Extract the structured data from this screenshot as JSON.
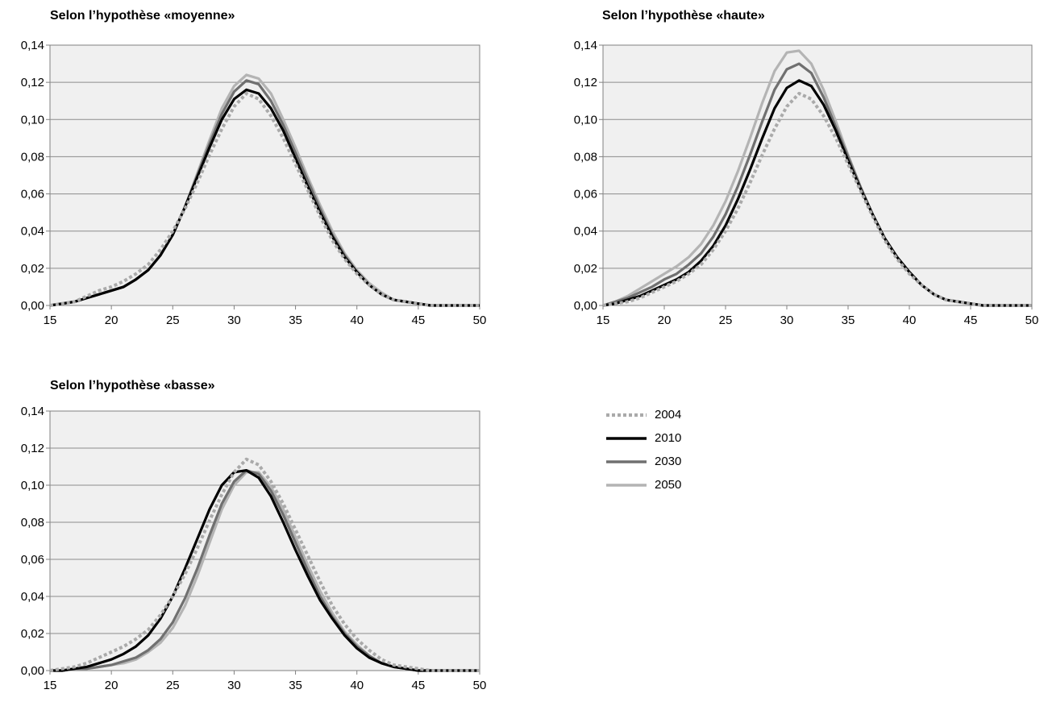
{
  "legend": {
    "items": [
      {
        "name": "2004",
        "color": "#aaaaaa",
        "dash": true
      },
      {
        "name": "2010",
        "color": "#000000",
        "dash": false
      },
      {
        "name": "2030",
        "color": "#707070",
        "dash": false
      },
      {
        "name": "2050",
        "color": "#b4b4b4",
        "dash": false
      }
    ]
  },
  "colors": {
    "plot_background": "#f0f0f0",
    "gridline": "#8c8c8c",
    "axis": "#808080"
  },
  "chart_data": [
    {
      "type": "line",
      "title": "Selon l’hypothèse «moyenne»",
      "xlabel": "",
      "ylabel": "",
      "xlim": [
        15,
        50
      ],
      "ylim": [
        0,
        0.14
      ],
      "xticks": [
        15,
        20,
        25,
        30,
        35,
        40,
        45,
        50
      ],
      "xtick_labels": [
        "15",
        "20",
        "25",
        "30",
        "35",
        "40",
        "45",
        "50"
      ],
      "yticks": [
        0,
        0.02,
        0.04,
        0.06,
        0.08,
        0.1,
        0.12,
        0.14
      ],
      "ytick_labels": [
        "0,00",
        "0,02",
        "0,04",
        "0,06",
        "0,08",
        "0,10",
        "0,12",
        "0,14"
      ],
      "grid": true,
      "x": [
        15,
        16,
        17,
        18,
        19,
        20,
        21,
        22,
        23,
        24,
        25,
        26,
        27,
        28,
        29,
        30,
        31,
        32,
        33,
        34,
        35,
        36,
        37,
        38,
        39,
        40,
        41,
        42,
        43,
        44,
        45,
        46,
        47,
        48,
        49,
        50
      ],
      "series": [
        {
          "name": "2004",
          "values": [
            0.0,
            0.001,
            0.002,
            0.005,
            0.008,
            0.01,
            0.013,
            0.017,
            0.022,
            0.03,
            0.04,
            0.052,
            0.066,
            0.081,
            0.095,
            0.107,
            0.114,
            0.111,
            0.102,
            0.09,
            0.076,
            0.062,
            0.048,
            0.035,
            0.025,
            0.017,
            0.011,
            0.006,
            0.003,
            0.002,
            0.001,
            0.0,
            0.0,
            0.0,
            0.0,
            0.0
          ]
        },
        {
          "name": "2010",
          "values": [
            0.0,
            0.001,
            0.002,
            0.004,
            0.006,
            0.008,
            0.01,
            0.014,
            0.019,
            0.027,
            0.038,
            0.053,
            0.069,
            0.085,
            0.1,
            0.111,
            0.116,
            0.114,
            0.106,
            0.094,
            0.079,
            0.064,
            0.05,
            0.037,
            0.026,
            0.018,
            0.011,
            0.006,
            0.003,
            0.002,
            0.001,
            0.0,
            0.0,
            0.0,
            0.0,
            0.0
          ]
        },
        {
          "name": "2030",
          "values": [
            0.0,
            0.001,
            0.002,
            0.004,
            0.006,
            0.008,
            0.01,
            0.014,
            0.019,
            0.027,
            0.038,
            0.053,
            0.07,
            0.087,
            0.103,
            0.115,
            0.121,
            0.119,
            0.11,
            0.097,
            0.082,
            0.067,
            0.052,
            0.038,
            0.027,
            0.018,
            0.011,
            0.006,
            0.003,
            0.002,
            0.001,
            0.0,
            0.0,
            0.0,
            0.0,
            0.0
          ]
        },
        {
          "name": "2050",
          "values": [
            0.0,
            0.001,
            0.002,
            0.004,
            0.006,
            0.008,
            0.01,
            0.014,
            0.019,
            0.027,
            0.038,
            0.053,
            0.071,
            0.089,
            0.106,
            0.118,
            0.124,
            0.122,
            0.114,
            0.1,
            0.085,
            0.069,
            0.054,
            0.04,
            0.028,
            0.019,
            0.012,
            0.007,
            0.003,
            0.002,
            0.001,
            0.0,
            0.0,
            0.0,
            0.0,
            0.0
          ]
        }
      ]
    },
    {
      "type": "line",
      "title": "Selon l’hypothèse «haute»",
      "xlabel": "",
      "ylabel": "",
      "xlim": [
        15,
        50
      ],
      "ylim": [
        0,
        0.14
      ],
      "xticks": [
        15,
        20,
        25,
        30,
        35,
        40,
        45,
        50
      ],
      "xtick_labels": [
        "15",
        "20",
        "25",
        "30",
        "35",
        "40",
        "45",
        "50"
      ],
      "yticks": [
        0,
        0.02,
        0.04,
        0.06,
        0.08,
        0.1,
        0.12,
        0.14
      ],
      "ytick_labels": [
        "0,00",
        "0,02",
        "0,04",
        "0,06",
        "0,08",
        "0,10",
        "0,12",
        "0,14"
      ],
      "grid": true,
      "x": [
        15,
        16,
        17,
        18,
        19,
        20,
        21,
        22,
        23,
        24,
        25,
        26,
        27,
        28,
        29,
        30,
        31,
        32,
        33,
        34,
        35,
        36,
        37,
        38,
        39,
        40,
        41,
        42,
        43,
        44,
        45,
        46,
        47,
        48,
        49,
        50
      ],
      "series": [
        {
          "name": "2004",
          "values": [
            0.0,
            0.001,
            0.002,
            0.004,
            0.007,
            0.01,
            0.013,
            0.017,
            0.022,
            0.03,
            0.04,
            0.052,
            0.066,
            0.081,
            0.095,
            0.107,
            0.114,
            0.111,
            0.102,
            0.09,
            0.076,
            0.062,
            0.048,
            0.035,
            0.025,
            0.017,
            0.011,
            0.006,
            0.003,
            0.002,
            0.001,
            0.0,
            0.0,
            0.0,
            0.0,
            0.0
          ]
        },
        {
          "name": "2010",
          "values": [
            0.0,
            0.001,
            0.003,
            0.005,
            0.008,
            0.011,
            0.014,
            0.018,
            0.024,
            0.032,
            0.043,
            0.057,
            0.073,
            0.09,
            0.106,
            0.117,
            0.121,
            0.118,
            0.108,
            0.094,
            0.078,
            0.063,
            0.049,
            0.036,
            0.026,
            0.018,
            0.011,
            0.006,
            0.003,
            0.002,
            0.001,
            0.0,
            0.0,
            0.0,
            0.0,
            0.0
          ]
        },
        {
          "name": "2030",
          "values": [
            0.0,
            0.002,
            0.004,
            0.007,
            0.01,
            0.014,
            0.017,
            0.022,
            0.028,
            0.037,
            0.049,
            0.064,
            0.081,
            0.099,
            0.116,
            0.127,
            0.13,
            0.125,
            0.112,
            0.096,
            0.08,
            0.064,
            0.049,
            0.036,
            0.026,
            0.018,
            0.011,
            0.006,
            0.003,
            0.002,
            0.001,
            0.0,
            0.0,
            0.0,
            0.0,
            0.0
          ]
        },
        {
          "name": "2050",
          "values": [
            0.0,
            0.002,
            0.005,
            0.009,
            0.013,
            0.017,
            0.021,
            0.026,
            0.033,
            0.043,
            0.056,
            0.072,
            0.09,
            0.109,
            0.126,
            0.136,
            0.137,
            0.13,
            0.116,
            0.099,
            0.081,
            0.064,
            0.049,
            0.036,
            0.026,
            0.018,
            0.011,
            0.006,
            0.003,
            0.002,
            0.001,
            0.0,
            0.0,
            0.0,
            0.0,
            0.0
          ]
        }
      ]
    },
    {
      "type": "line",
      "title": "Selon l’hypothèse «basse»",
      "xlabel": "",
      "ylabel": "",
      "xlim": [
        15,
        50
      ],
      "ylim": [
        0,
        0.14
      ],
      "xticks": [
        15,
        20,
        25,
        30,
        35,
        40,
        45,
        50
      ],
      "xtick_labels": [
        "15",
        "20",
        "25",
        "30",
        "35",
        "40",
        "45",
        "50"
      ],
      "yticks": [
        0,
        0.02,
        0.04,
        0.06,
        0.08,
        0.1,
        0.12,
        0.14
      ],
      "ytick_labels": [
        "0,00",
        "0,02",
        "0,04",
        "0,06",
        "0,08",
        "0,10",
        "0,12",
        "0,14"
      ],
      "grid": true,
      "x": [
        15,
        16,
        17,
        18,
        19,
        20,
        21,
        22,
        23,
        24,
        25,
        26,
        27,
        28,
        29,
        30,
        31,
        32,
        33,
        34,
        35,
        36,
        37,
        38,
        39,
        40,
        41,
        42,
        43,
        44,
        45,
        46,
        47,
        48,
        49,
        50
      ],
      "series": [
        {
          "name": "2004",
          "values": [
            0.0,
            0.001,
            0.002,
            0.004,
            0.007,
            0.01,
            0.013,
            0.017,
            0.022,
            0.03,
            0.04,
            0.052,
            0.066,
            0.081,
            0.095,
            0.107,
            0.114,
            0.111,
            0.102,
            0.09,
            0.076,
            0.062,
            0.048,
            0.035,
            0.025,
            0.017,
            0.011,
            0.006,
            0.003,
            0.002,
            0.001,
            0.0,
            0.0,
            0.0,
            0.0,
            0.0
          ]
        },
        {
          "name": "2010",
          "values": [
            0.0,
            0.0,
            0.001,
            0.002,
            0.004,
            0.006,
            0.009,
            0.013,
            0.019,
            0.028,
            0.04,
            0.055,
            0.071,
            0.087,
            0.1,
            0.107,
            0.108,
            0.104,
            0.094,
            0.08,
            0.065,
            0.051,
            0.038,
            0.028,
            0.019,
            0.012,
            0.007,
            0.004,
            0.002,
            0.001,
            0.0,
            0.0,
            0.0,
            0.0,
            0.0,
            0.0
          ]
        },
        {
          "name": "2030",
          "values": [
            0.0,
            0.0,
            0.001,
            0.001,
            0.002,
            0.003,
            0.005,
            0.007,
            0.011,
            0.017,
            0.026,
            0.039,
            0.055,
            0.073,
            0.09,
            0.102,
            0.108,
            0.106,
            0.097,
            0.084,
            0.069,
            0.054,
            0.04,
            0.029,
            0.02,
            0.013,
            0.008,
            0.004,
            0.002,
            0.001,
            0.0,
            0.0,
            0.0,
            0.0,
            0.0,
            0.0
          ]
        },
        {
          "name": "2050",
          "values": [
            0.0,
            0.0,
            0.001,
            0.001,
            0.002,
            0.003,
            0.004,
            0.006,
            0.01,
            0.015,
            0.023,
            0.035,
            0.051,
            0.069,
            0.087,
            0.1,
            0.107,
            0.107,
            0.099,
            0.087,
            0.072,
            0.057,
            0.043,
            0.031,
            0.021,
            0.014,
            0.008,
            0.004,
            0.002,
            0.001,
            0.0,
            0.0,
            0.0,
            0.0,
            0.0,
            0.0
          ]
        }
      ]
    }
  ]
}
